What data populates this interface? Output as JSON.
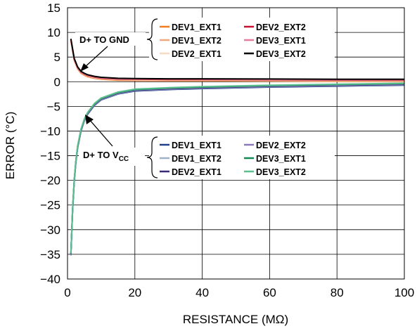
{
  "chart_data": {
    "type": "line",
    "xlabel": "RESISTANCE (MΩ)",
    "ylabel": "ERROR (°C)",
    "xlim": [
      0,
      100
    ],
    "ylim": [
      -40,
      15
    ],
    "xticks": [
      "0",
      "20",
      "40",
      "60",
      "80",
      "100"
    ],
    "yticks": [
      "15",
      "10",
      "5",
      "0",
      "−5",
      "−10",
      "−15",
      "−20",
      "−25",
      "−30",
      "−35",
      "−40"
    ],
    "grid": true,
    "groups": [
      {
        "annotation": "D+ TO GND",
        "series": [
          {
            "name": "DEV1_EXT1",
            "color": "#f47b20"
          },
          {
            "name": "DEV1_EXT2",
            "color": "#f4a77a"
          },
          {
            "name": "DEV2_EXT1",
            "color": "#f7dcc5"
          },
          {
            "name": "DEV2_EXT2",
            "color": "#c8102e"
          },
          {
            "name": "DEV3_EXT1",
            "color": "#e87a9c"
          },
          {
            "name": "DEV3_EXT2",
            "color": "#000000"
          }
        ],
        "x": [
          1,
          2,
          3,
          4,
          5,
          6,
          8,
          10,
          15,
          20,
          30,
          40,
          60,
          80,
          100
        ],
        "y": [
          8.5,
          4.5,
          2.8,
          1.9,
          1.5,
          1.2,
          0.9,
          0.7,
          0.5,
          0.45,
          0.4,
          0.4,
          0.35,
          0.3,
          0.3
        ]
      },
      {
        "annotation_main": "D+ TO V",
        "annotation_sub": "CC",
        "series": [
          {
            "name": "DEV1_EXT1",
            "color": "#1f3f8f"
          },
          {
            "name": "DEV1_EXT2",
            "color": "#9fb3c8"
          },
          {
            "name": "DEV2_EXT1",
            "color": "#3b2a7a"
          },
          {
            "name": "DEV2_EXT2",
            "color": "#8b78b8"
          },
          {
            "name": "DEV3_EXT1",
            "color": "#0f8a55"
          },
          {
            "name": "DEV3_EXT2",
            "color": "#5cbf8f"
          }
        ],
        "x": [
          1,
          1.5,
          2,
          2.5,
          3,
          4,
          5,
          6,
          8,
          10,
          15,
          20,
          30,
          40,
          60,
          80,
          100
        ],
        "y": [
          -35,
          -26,
          -20,
          -16,
          -13.2,
          -9.8,
          -7.7,
          -6.4,
          -4.6,
          -3.5,
          -2.3,
          -1.7,
          -1.4,
          -1.2,
          -0.9,
          -0.7,
          -0.5
        ]
      }
    ]
  }
}
